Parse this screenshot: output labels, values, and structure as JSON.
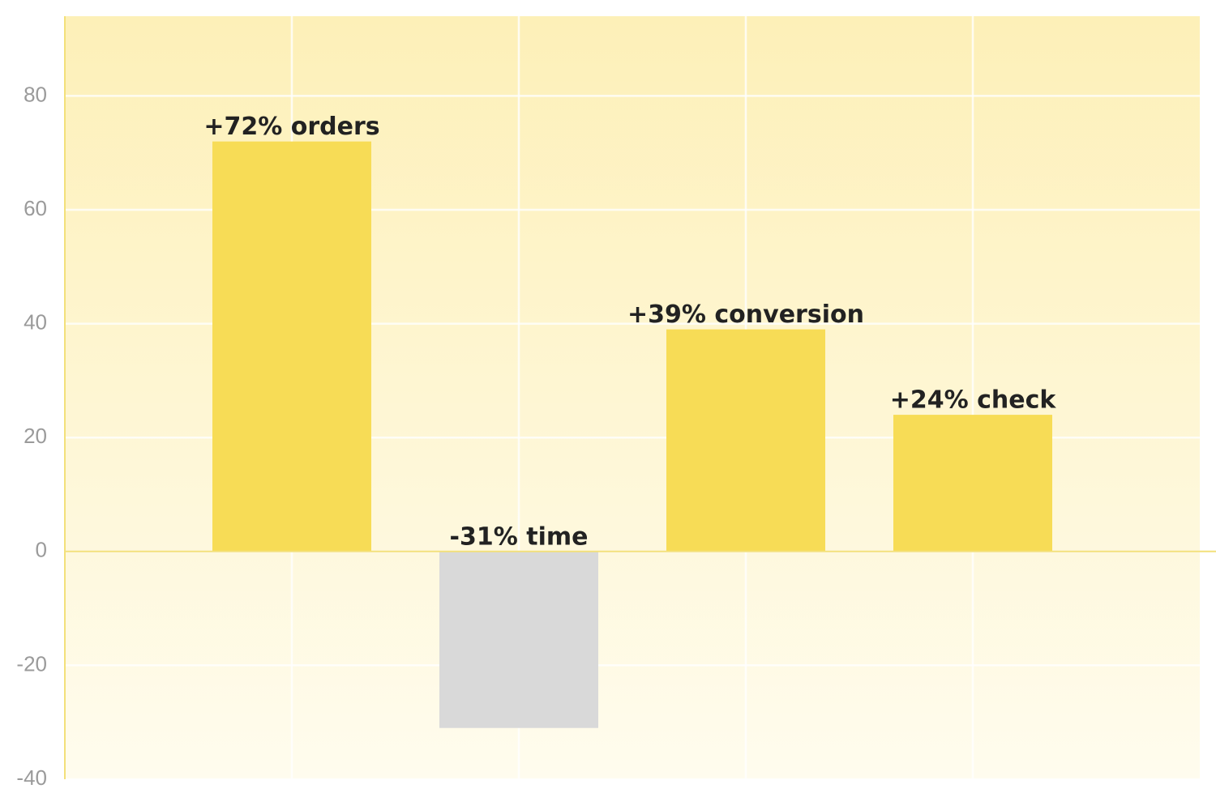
{
  "chart_data": {
    "type": "bar",
    "categories": [
      null,
      null,
      null,
      null
    ],
    "values": [
      72,
      -31,
      39,
      24
    ],
    "value_labels": [
      "+72% orders",
      "-31% time",
      "+39% conversion",
      "+24% check"
    ],
    "colors": [
      "#f7dc56",
      "#d9d9d9",
      "#f7dc56",
      "#f7dc56"
    ],
    "ylim": [
      -40,
      94
    ],
    "yticks": [
      -40,
      -20,
      0,
      20,
      40,
      60,
      80
    ],
    "grid": true
  }
}
